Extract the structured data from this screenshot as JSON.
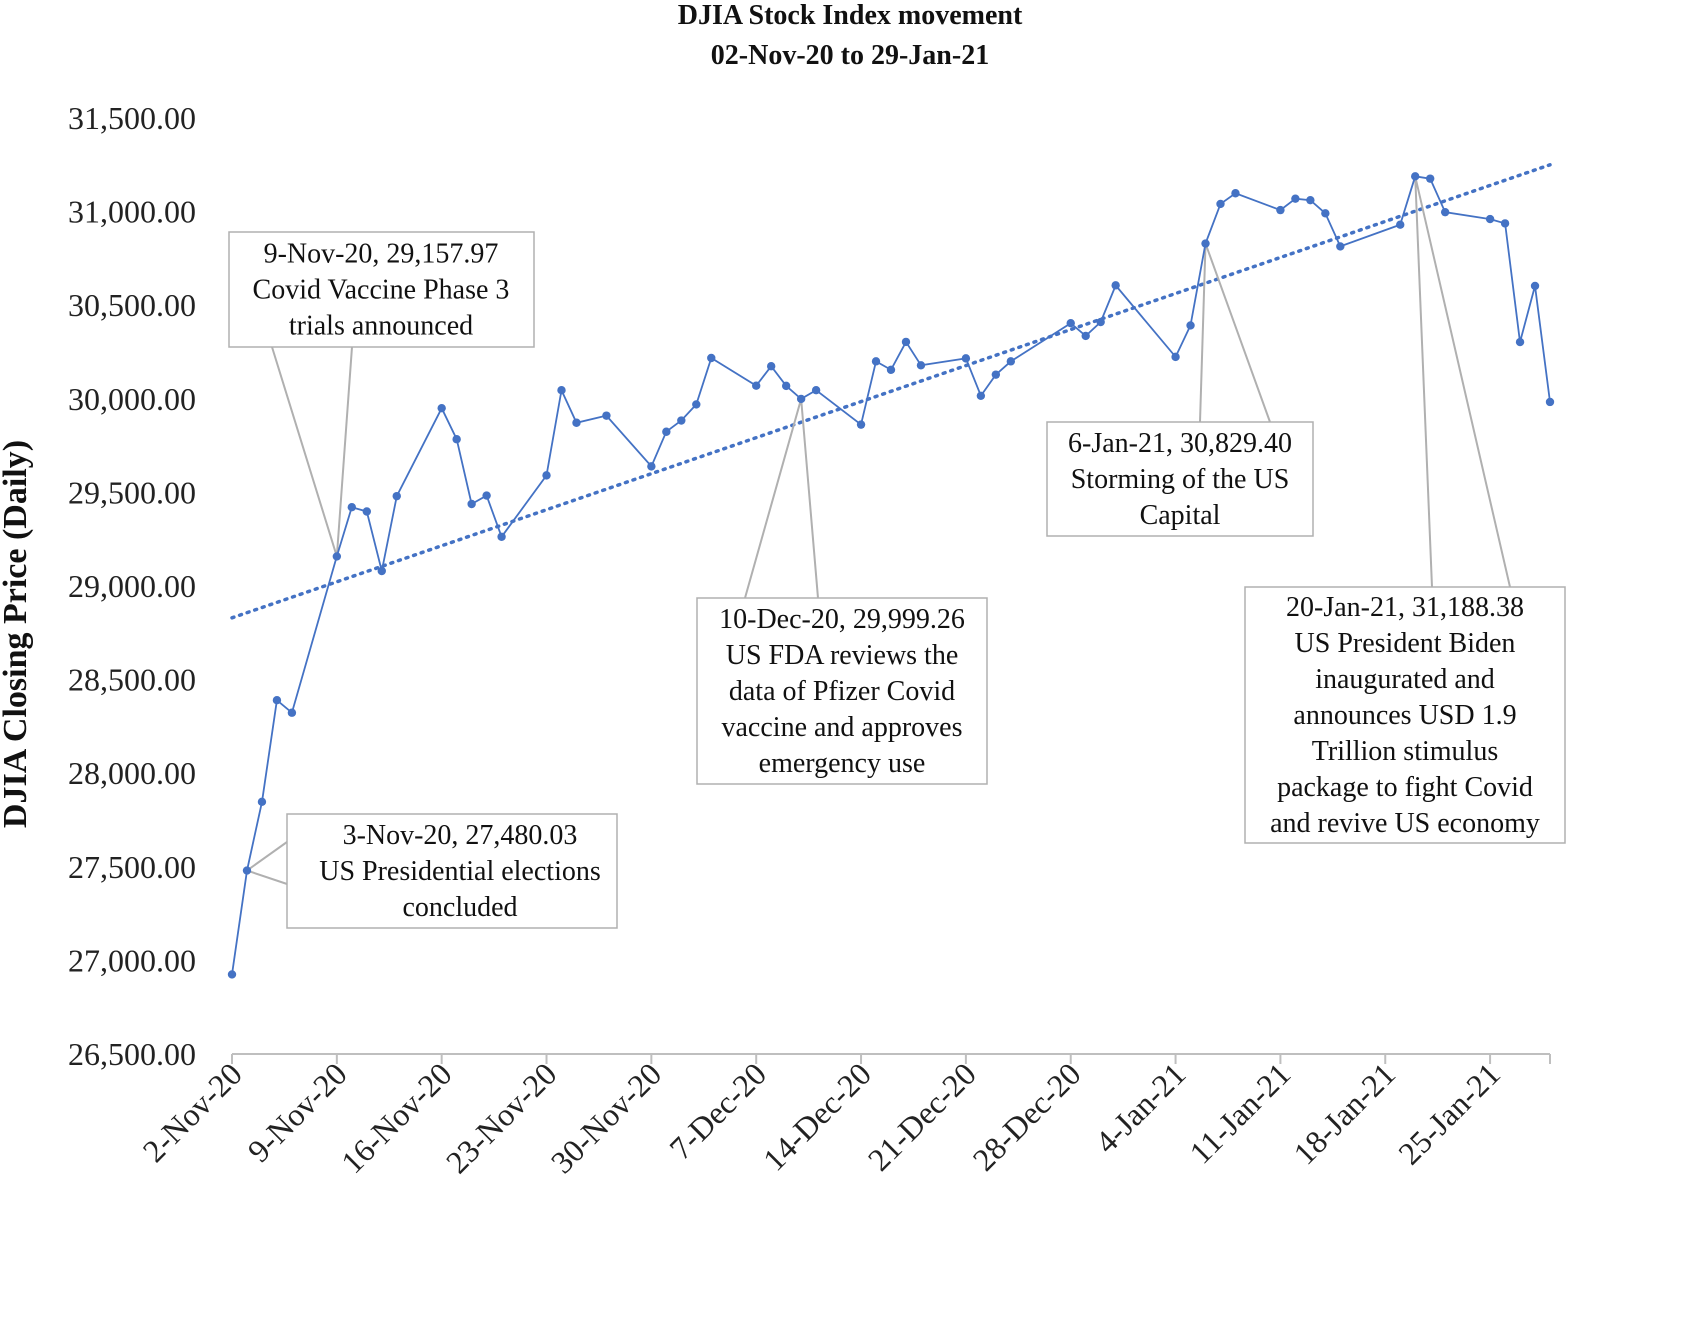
{
  "chart_data": {
    "type": "line",
    "title": "DJIA Stock Index movement",
    "subtitle": "02-Nov-20 to 29-Jan-21",
    "ylabel": "DJIA Closing Price (Daily)",
    "xlabel": "",
    "ylim": [
      26500,
      31500
    ],
    "y_ticks": [
      "26,500.00",
      "27,000.00",
      "27,500.00",
      "28,000.00",
      "28,500.00",
      "29,000.00",
      "29,500.00",
      "30,000.00",
      "30,500.00",
      "31,000.00",
      "31,500.00"
    ],
    "x_ticks": [
      "2-Nov-20",
      "9-Nov-20",
      "16-Nov-20",
      "23-Nov-20",
      "30-Nov-20",
      "7-Dec-20",
      "14-Dec-20",
      "21-Dec-20",
      "28-Dec-20",
      "4-Jan-21",
      "11-Jan-21",
      "18-Jan-21",
      "25-Jan-21"
    ],
    "x_tick_dates": [
      "2020-11-02",
      "2020-11-09",
      "2020-11-16",
      "2020-11-23",
      "2020-11-30",
      "2020-12-07",
      "2020-12-14",
      "2020-12-21",
      "2020-12-28",
      "2021-01-04",
      "2021-01-11",
      "2021-01-18",
      "2021-01-25"
    ],
    "xlim": [
      "2020-11-02",
      "2021-01-29"
    ],
    "grid": false,
    "legend": "none",
    "series": [
      {
        "color": "#4472c4",
        "points": [
          {
            "x": "2020-11-02",
            "y": 26925
          },
          {
            "x": "2020-11-03",
            "y": 27480.03
          },
          {
            "x": "2020-11-04",
            "y": 27847
          },
          {
            "x": "2020-11-05",
            "y": 28390
          },
          {
            "x": "2020-11-06",
            "y": 28323
          },
          {
            "x": "2020-11-09",
            "y": 29157.97
          },
          {
            "x": "2020-11-10",
            "y": 29421
          },
          {
            "x": "2020-11-11",
            "y": 29398
          },
          {
            "x": "2020-11-12",
            "y": 29080
          },
          {
            "x": "2020-11-13",
            "y": 29480
          },
          {
            "x": "2020-11-16",
            "y": 29950
          },
          {
            "x": "2020-11-17",
            "y": 29784
          },
          {
            "x": "2020-11-18",
            "y": 29438
          },
          {
            "x": "2020-11-19",
            "y": 29483
          },
          {
            "x": "2020-11-20",
            "y": 29263
          },
          {
            "x": "2020-11-23",
            "y": 29591
          },
          {
            "x": "2020-11-24",
            "y": 30046
          },
          {
            "x": "2020-11-25",
            "y": 29872
          },
          {
            "x": "2020-11-27",
            "y": 29910
          },
          {
            "x": "2020-11-30",
            "y": 29639
          },
          {
            "x": "2020-12-01",
            "y": 29824
          },
          {
            "x": "2020-12-02",
            "y": 29884
          },
          {
            "x": "2020-12-03",
            "y": 29970
          },
          {
            "x": "2020-12-04",
            "y": 30218
          },
          {
            "x": "2020-12-07",
            "y": 30070
          },
          {
            "x": "2020-12-08",
            "y": 30174
          },
          {
            "x": "2020-12-09",
            "y": 30069
          },
          {
            "x": "2020-12-10",
            "y": 29999.26
          },
          {
            "x": "2020-12-11",
            "y": 30046
          },
          {
            "x": "2020-12-14",
            "y": 29862
          },
          {
            "x": "2020-12-15",
            "y": 30200
          },
          {
            "x": "2020-12-16",
            "y": 30155
          },
          {
            "x": "2020-12-17",
            "y": 30304
          },
          {
            "x": "2020-12-18",
            "y": 30179
          },
          {
            "x": "2020-12-21",
            "y": 30216
          },
          {
            "x": "2020-12-22",
            "y": 30016
          },
          {
            "x": "2020-12-23",
            "y": 30129
          },
          {
            "x": "2020-12-24",
            "y": 30200
          },
          {
            "x": "2020-12-28",
            "y": 30404
          },
          {
            "x": "2020-12-29",
            "y": 30336
          },
          {
            "x": "2020-12-30",
            "y": 30410
          },
          {
            "x": "2020-12-31",
            "y": 30606
          },
          {
            "x": "2021-01-04",
            "y": 30224
          },
          {
            "x": "2021-01-05",
            "y": 30392
          },
          {
            "x": "2021-01-06",
            "y": 30829.4
          },
          {
            "x": "2021-01-07",
            "y": 31041
          },
          {
            "x": "2021-01-08",
            "y": 31098
          },
          {
            "x": "2021-01-11",
            "y": 31008
          },
          {
            "x": "2021-01-12",
            "y": 31069
          },
          {
            "x": "2021-01-13",
            "y": 31061
          },
          {
            "x": "2021-01-14",
            "y": 30991
          },
          {
            "x": "2021-01-15",
            "y": 30814
          },
          {
            "x": "2021-01-19",
            "y": 30930
          },
          {
            "x": "2021-01-20",
            "y": 31188.38
          },
          {
            "x": "2021-01-21",
            "y": 31176
          },
          {
            "x": "2021-01-22",
            "y": 30997
          },
          {
            "x": "2021-01-25",
            "y": 30960
          },
          {
            "x": "2021-01-26",
            "y": 30937
          },
          {
            "x": "2021-01-27",
            "y": 30303
          },
          {
            "x": "2021-01-28",
            "y": 30603
          },
          {
            "x": "2021-01-29",
            "y": 29983
          }
        ]
      }
    ],
    "trendline": {
      "style": "dotted",
      "color": "#4472c4",
      "start": {
        "x": "2020-11-02",
        "y": 28830
      },
      "end": {
        "x": "2021-01-29",
        "y": 31250
      }
    },
    "annotations": [
      {
        "x": "2020-11-03",
        "y": 27480.03,
        "lines": [
          "3-Nov-20, 27,480.03",
          "US Presidential elections",
          "concluded"
        ]
      },
      {
        "x": "2020-11-09",
        "y": 29157.97,
        "lines": [
          "9-Nov-20, 29,157.97",
          "Covid Vaccine Phase 3",
          "trials announced"
        ]
      },
      {
        "x": "2020-12-10",
        "y": 29999.26,
        "lines": [
          "10-Dec-20, 29,999.26",
          "US FDA reviews the",
          "data of Pfizer Covid",
          "vaccine and approves",
          "emergency use"
        ]
      },
      {
        "x": "2021-01-06",
        "y": 30829.4,
        "lines": [
          "6-Jan-21, 30,829.40",
          "Storming of the US",
          "Capital"
        ]
      },
      {
        "x": "2021-01-20",
        "y": 31188.38,
        "lines": [
          "20-Jan-21, 31,188.38",
          "US President Biden",
          "inaugurated and",
          "announces USD 1.9",
          "Trillion stimulus",
          "package to fight Covid",
          "and revive US economy"
        ]
      }
    ]
  }
}
